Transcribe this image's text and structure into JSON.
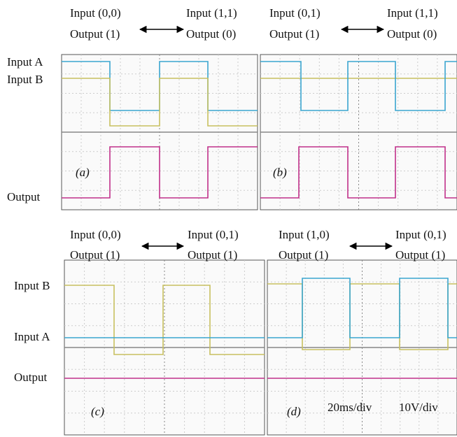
{
  "rows": [
    {
      "channel_labels": [
        "Input A",
        "Input B",
        "Output"
      ],
      "panels": [
        {
          "label": "(a)",
          "states": [
            {
              "input": "Input (0,0)",
              "output": "Output (1)"
            },
            {
              "input": "Input (1,1)",
              "output": "Output (0)"
            }
          ]
        },
        {
          "label": "(b)",
          "states": [
            {
              "input": "Input (0,1)",
              "output": "Output (1)"
            },
            {
              "input": "Input (1,1)",
              "output": "Output (0)"
            }
          ]
        }
      ]
    },
    {
      "channel_labels": [
        "Input B",
        "Input A",
        "Output"
      ],
      "panels": [
        {
          "label": "(c)",
          "states": [
            {
              "input": "Input (0,0)",
              "output": "Output (1)"
            },
            {
              "input": "Input (0,1)",
              "output": "Output (1)"
            }
          ]
        },
        {
          "label": "(d)",
          "states": [
            {
              "input": "Input (1,0)",
              "output": "Output (1)"
            },
            {
              "input": "Input (0,1)",
              "output": "Output (1)"
            }
          ]
        }
      ]
    }
  ],
  "time_scale": "20ms/div",
  "volt_scale": "10V/div"
}
